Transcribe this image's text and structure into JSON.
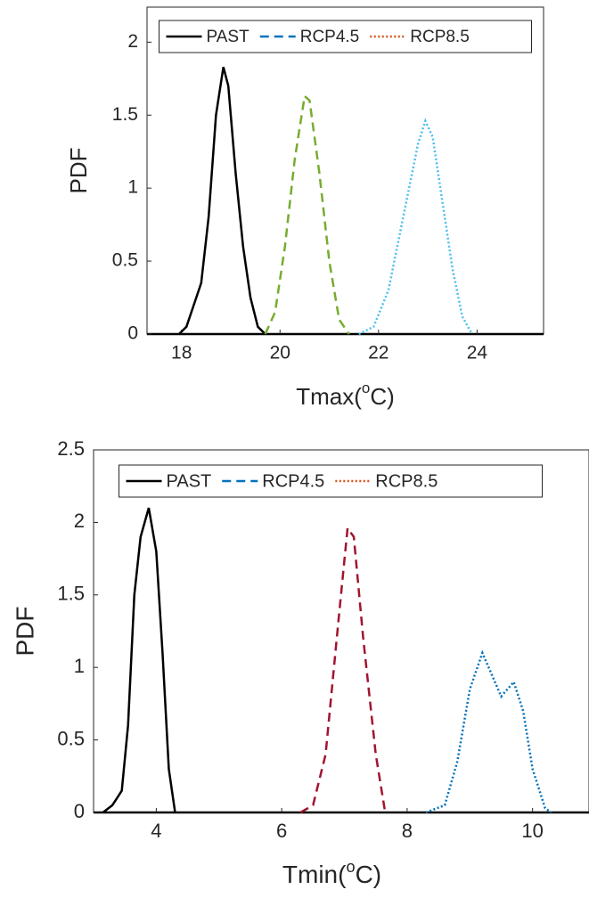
{
  "chart_data": [
    {
      "type": "line",
      "xlabel": [
        "Tmax(",
        "o",
        "C)"
      ],
      "ylabel": "PDF",
      "xlim": [
        17.3,
        25.35
      ],
      "xticks": [
        18,
        20,
        22,
        24
      ],
      "ylim": [
        0,
        2.24
      ],
      "yticks": [
        0,
        0.5,
        1,
        1.5,
        2
      ],
      "legend": "top",
      "series": [
        {
          "name": "PAST",
          "color": "#000000",
          "legend_color": "#000000",
          "style": "solid",
          "x": [
            17.95,
            18.1,
            18.25,
            18.4,
            18.55,
            18.7,
            18.85,
            18.95,
            19.1,
            19.25,
            19.4,
            19.55,
            19.7
          ],
          "values": [
            0,
            0.05,
            0.2,
            0.35,
            0.8,
            1.5,
            1.83,
            1.7,
            1.1,
            0.6,
            0.25,
            0.05,
            0
          ]
        },
        {
          "name": "RCP4.5",
          "color": "#77ac30",
          "legend_color": "#0072bd",
          "style": "dashed",
          "x": [
            19.7,
            19.9,
            20.1,
            20.3,
            20.5,
            20.6,
            20.8,
            21.0,
            21.2,
            21.4
          ],
          "values": [
            0,
            0.15,
            0.6,
            1.2,
            1.63,
            1.6,
            1.1,
            0.5,
            0.1,
            0
          ]
        },
        {
          "name": "RCP8.5",
          "color": "#4dbeee",
          "legend_color": "#d95319",
          "style": "dotted",
          "x": [
            21.6,
            21.9,
            22.2,
            22.5,
            22.8,
            22.95,
            23.1,
            23.3,
            23.5,
            23.7,
            23.9
          ],
          "values": [
            0,
            0.05,
            0.3,
            0.8,
            1.3,
            1.46,
            1.35,
            0.9,
            0.45,
            0.12,
            0
          ]
        }
      ]
    },
    {
      "type": "line",
      "xlabel": [
        "Tmin(",
        "o",
        "C)"
      ],
      "ylabel": "PDF",
      "xlim": [
        3,
        10.9
      ],
      "xticks": [
        4,
        6,
        8,
        10
      ],
      "ylim": [
        0,
        2.5
      ],
      "yticks": [
        0,
        0.5,
        1,
        1.5,
        2,
        2.5
      ],
      "legend": "top",
      "series": [
        {
          "name": "PAST",
          "color": "#000000",
          "legend_color": "#000000",
          "style": "solid",
          "x": [
            3.15,
            3.3,
            3.45,
            3.55,
            3.65,
            3.75,
            3.88,
            4.0,
            4.1,
            4.2,
            4.3
          ],
          "values": [
            0,
            0.05,
            0.15,
            0.6,
            1.5,
            1.9,
            2.1,
            1.8,
            1.1,
            0.3,
            0
          ]
        },
        {
          "name": "RCP4.5",
          "color": "#a2142f",
          "legend_color": "#0072bd",
          "style": "dashed",
          "x": [
            6.3,
            6.5,
            6.7,
            6.9,
            7.05,
            7.15,
            7.3,
            7.5,
            7.65
          ],
          "values": [
            0,
            0.05,
            0.4,
            1.3,
            1.96,
            1.9,
            1.2,
            0.4,
            0
          ]
        },
        {
          "name": "RCP8.5",
          "color": "#0072bd",
          "legend_color": "#d95319",
          "style": "dotted",
          "x": [
            8.3,
            8.6,
            8.8,
            9.0,
            9.2,
            9.35,
            9.5,
            9.7,
            9.85,
            10.0,
            10.2,
            10.3
          ],
          "values": [
            0,
            0.05,
            0.35,
            0.85,
            1.1,
            0.95,
            0.8,
            0.9,
            0.7,
            0.3,
            0.03,
            0
          ]
        }
      ]
    }
  ]
}
